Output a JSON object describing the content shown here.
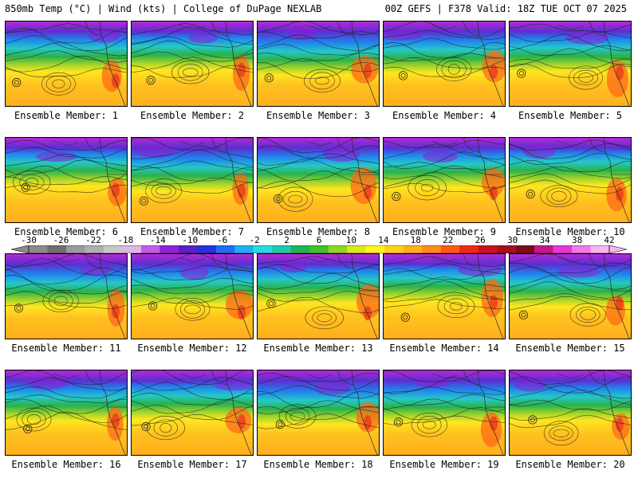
{
  "header": {
    "left": "850mb Temp (°C) | Wind (kts) | College of DuPage NEXLAB",
    "right": "00Z GEFS | F378 Valid: 18Z TUE OCT 07 2025"
  },
  "colorbar": {
    "labels": [
      "-30",
      "-26",
      "-22",
      "-18",
      "-14",
      "-10",
      "-6",
      "-2",
      "2",
      "6",
      "10",
      "14",
      "18",
      "22",
      "26",
      "30",
      "34",
      "38",
      "42"
    ],
    "colors": [
      "#8a8a8a",
      "#6e6e6e",
      "#9a9a9a",
      "#b0b0b0",
      "#c7c7c7",
      "#dcb7ea",
      "#c45be8",
      "#8f22d6",
      "#5b1fc6",
      "#2335d8",
      "#1f6ff0",
      "#1fb0f4",
      "#2ad9e0",
      "#22c7a8",
      "#1fb35a",
      "#3fc22a",
      "#8fd424",
      "#d8e81f",
      "#fff41f",
      "#ffd01f",
      "#ffb11c",
      "#ff8c1c",
      "#ff5a14",
      "#ee2a14",
      "#c8141e",
      "#a0101e",
      "#7a0c1c",
      "#c8168c",
      "#e23ad0",
      "#ee7ae8",
      "#f6b6f2"
    ]
  },
  "members": [
    {
      "label": "Ensemble Member: 1"
    },
    {
      "label": "Ensemble Member: 2"
    },
    {
      "label": "Ensemble Member: 3"
    },
    {
      "label": "Ensemble Member: 4"
    },
    {
      "label": "Ensemble Member: 5"
    },
    {
      "label": "Ensemble Member: 6"
    },
    {
      "label": "Ensemble Member: 7"
    },
    {
      "label": "Ensemble Member: 8"
    },
    {
      "label": "Ensemble Member: 9"
    },
    {
      "label": "Ensemble Member: 10"
    },
    {
      "label": "Ensemble Member: 11"
    },
    {
      "label": "Ensemble Member: 12"
    },
    {
      "label": "Ensemble Member: 13"
    },
    {
      "label": "Ensemble Member: 14"
    },
    {
      "label": "Ensemble Member: 15"
    },
    {
      "label": "Ensemble Member: 16"
    },
    {
      "label": "Ensemble Member: 17"
    },
    {
      "label": "Ensemble Member: 18"
    },
    {
      "label": "Ensemble Member: 19"
    },
    {
      "label": "Ensemble Member: 20"
    }
  ]
}
